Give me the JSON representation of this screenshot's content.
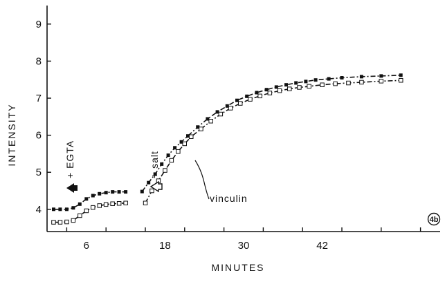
{
  "chart_data": {
    "type": "line",
    "title": "",
    "xlabel": "MINUTES",
    "ylabel": "INTENSITY",
    "xlim": [
      0,
      60
    ],
    "ylim": [
      3.4,
      9.5
    ],
    "xticks": [
      6,
      18,
      30,
      42
    ],
    "yticks": [
      4,
      5,
      6,
      7,
      8,
      9
    ],
    "grid": false,
    "panel_label": "4b",
    "annotations": {
      "egta": "+ EGTA",
      "salt": "+ salt",
      "vinculin": "vinculin"
    },
    "series": [
      {
        "marker": "filled-square",
        "segments": [
          [
            [
              1,
              4.0
            ],
            [
              2,
              4.0
            ],
            [
              3,
              4.0
            ],
            [
              4,
              4.04
            ],
            [
              5,
              4.14
            ],
            [
              6,
              4.28
            ],
            [
              7,
              4.37
            ],
            [
              8,
              4.42
            ],
            [
              9,
              4.45
            ],
            [
              10,
              4.47
            ],
            [
              11,
              4.47
            ],
            [
              12,
              4.47
            ]
          ],
          [
            [
              14.5,
              4.48
            ],
            [
              15.5,
              4.72
            ],
            [
              16.5,
              4.95
            ],
            [
              17.5,
              5.22
            ],
            [
              18.5,
              5.46
            ],
            [
              19.5,
              5.66
            ],
            [
              20.5,
              5.82
            ],
            [
              21.5,
              5.98
            ],
            [
              23,
              6.22
            ],
            [
              24.5,
              6.44
            ],
            [
              26,
              6.63
            ],
            [
              27.5,
              6.79
            ],
            [
              29,
              6.94
            ],
            [
              30.5,
              7.05
            ],
            [
              32,
              7.15
            ],
            [
              33.5,
              7.23
            ],
            [
              35,
              7.3
            ],
            [
              36.5,
              7.36
            ],
            [
              38,
              7.41
            ],
            [
              39.5,
              7.45
            ],
            [
              41,
              7.49
            ],
            [
              43,
              7.52
            ],
            [
              45,
              7.55
            ],
            [
              48,
              7.58
            ],
            [
              51,
              7.6
            ],
            [
              54,
              7.62
            ]
          ]
        ]
      },
      {
        "marker": "open-square",
        "segments": [
          [
            [
              1,
              3.65
            ],
            [
              2,
              3.65
            ],
            [
              3,
              3.66
            ],
            [
              4,
              3.7
            ],
            [
              5,
              3.83
            ],
            [
              6,
              3.96
            ],
            [
              7,
              4.05
            ],
            [
              8,
              4.1
            ],
            [
              9,
              4.13
            ],
            [
              10,
              4.15
            ],
            [
              11,
              4.16
            ],
            [
              12,
              4.17
            ]
          ],
          [
            [
              15,
              4.17
            ],
            [
              16,
              4.5
            ],
            [
              17,
              4.77
            ],
            [
              18,
              5.05
            ],
            [
              19,
              5.32
            ],
            [
              20,
              5.56
            ],
            [
              21,
              5.77
            ],
            [
              22,
              5.96
            ],
            [
              23.5,
              6.17
            ],
            [
              25,
              6.38
            ],
            [
              26.5,
              6.57
            ],
            [
              28,
              6.73
            ],
            [
              29.5,
              6.86
            ],
            [
              31,
              6.97
            ],
            [
              32.5,
              7.06
            ],
            [
              34,
              7.14
            ],
            [
              35.5,
              7.2
            ],
            [
              37,
              7.25
            ],
            [
              38.5,
              7.29
            ],
            [
              40,
              7.32
            ],
            [
              42,
              7.36
            ],
            [
              44,
              7.39
            ],
            [
              46,
              7.41
            ],
            [
              48,
              7.43
            ],
            [
              51,
              7.46
            ],
            [
              54,
              7.48
            ]
          ]
        ]
      }
    ]
  }
}
